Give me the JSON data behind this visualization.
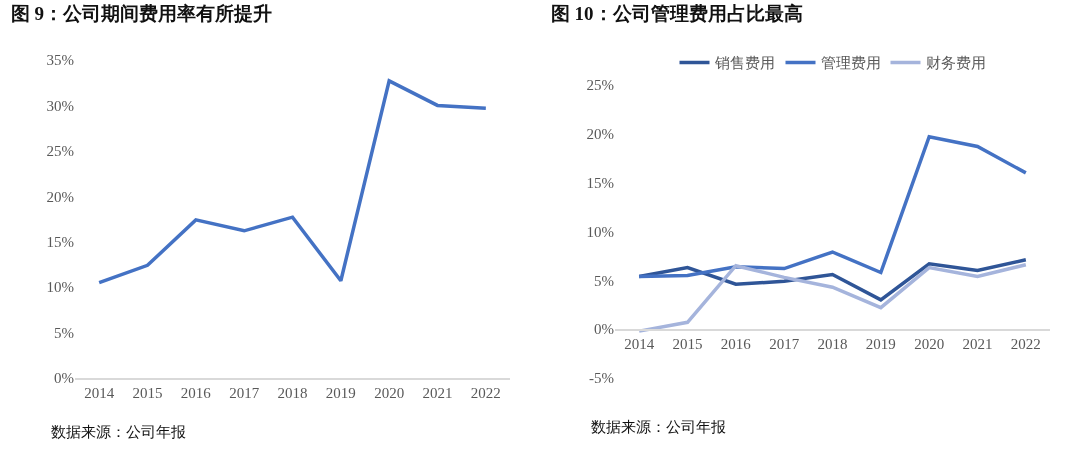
{
  "chart_data": [
    {
      "type": "line",
      "title": "图 9：公司期间费用率有所提升",
      "categories": [
        "2014",
        "2015",
        "2016",
        "2017",
        "2018",
        "2019",
        "2020",
        "2021",
        "2022"
      ],
      "series": [
        {
          "color": "#4472c4",
          "values": [
            10.5,
            12.4,
            17.4,
            16.2,
            17.7,
            10.7,
            32.7,
            30.0,
            29.7
          ]
        }
      ],
      "ylim": [
        0,
        35
      ],
      "yticks": [
        {
          "value": 0,
          "label": "0%"
        },
        {
          "value": 5,
          "label": "5%"
        },
        {
          "value": 10,
          "label": "10%"
        },
        {
          "value": 15,
          "label": "15%"
        },
        {
          "value": 20,
          "label": "20%"
        },
        {
          "value": 25,
          "label": "25%"
        },
        {
          "value": 30,
          "label": "30%"
        },
        {
          "value": 35,
          "label": "35%"
        }
      ],
      "grid": false,
      "legend": false,
      "marker": "none",
      "line_style": "solid",
      "annotations": [
        "数据来源：公司年报"
      ]
    },
    {
      "type": "line",
      "title": "图 10：公司管理费用占比最高",
      "categories": [
        "2014",
        "2015",
        "2016",
        "2017",
        "2018",
        "2019",
        "2020",
        "2021",
        "2022"
      ],
      "series": [
        {
          "name": "销售费用",
          "color": "#2f5597",
          "values": [
            5.4,
            6.3,
            4.6,
            4.9,
            5.6,
            3.0,
            6.7,
            6.0,
            7.1
          ]
        },
        {
          "name": "管理费用",
          "color": "#4472c4",
          "values": [
            5.4,
            5.5,
            6.4,
            6.2,
            7.9,
            5.8,
            19.7,
            18.7,
            16.0
          ]
        },
        {
          "name": "财务费用",
          "color": "#a5b4dc",
          "values": [
            -0.2,
            0.7,
            6.5,
            5.3,
            4.3,
            2.2,
            6.3,
            5.4,
            6.6
          ]
        }
      ],
      "ylim": [
        -5,
        25
      ],
      "yticks": [
        {
          "value": -5,
          "label": "-5%"
        },
        {
          "value": 0,
          "label": "0%"
        },
        {
          "value": 5,
          "label": "5%"
        },
        {
          "value": 10,
          "label": "10%"
        },
        {
          "value": 15,
          "label": "15%"
        },
        {
          "value": 20,
          "label": "20%"
        },
        {
          "value": 25,
          "label": "25%"
        }
      ],
      "grid": false,
      "legend": "top",
      "marker": "none",
      "line_style": "solid",
      "annotations": [
        "数据来源：公司年报"
      ]
    }
  ]
}
